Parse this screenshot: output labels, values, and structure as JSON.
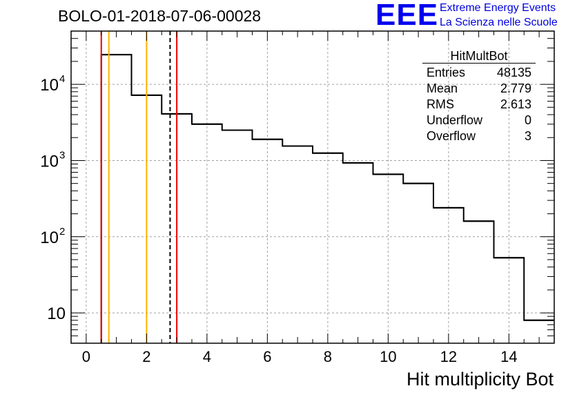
{
  "page": {
    "title": "BOLO-01-2018-07-06-00028",
    "logo_text": "EEE",
    "logo_line1": "Extreme Energy Events",
    "logo_line2": "La Scienza nelle Scuole"
  },
  "stats": {
    "title": "HitMultBot",
    "rows": [
      {
        "label": "Entries",
        "value": "48135"
      },
      {
        "label": "Mean",
        "value": "2.779"
      },
      {
        "label": "RMS",
        "value": "2.613"
      },
      {
        "label": "Underflow",
        "value": "0"
      },
      {
        "label": "Overflow",
        "value": "3"
      }
    ]
  },
  "chart_data": {
    "type": "histogram",
    "title": "BOLO-01-2018-07-06-00028",
    "xlabel": "Hit multiplicity Bot",
    "ylabel": "",
    "xlim": [
      -0.5,
      15.5
    ],
    "ylim": [
      4,
      50000
    ],
    "y_scale": "log",
    "grid": true,
    "x_ticks": [
      0,
      2,
      4,
      6,
      8,
      10,
      12,
      14
    ],
    "y_ticks": [
      {
        "value": 10,
        "base": "10",
        "exp": ""
      },
      {
        "value": 100,
        "base": "10",
        "exp": "2"
      },
      {
        "value": 1000,
        "base": "10",
        "exp": "3"
      },
      {
        "value": 10000,
        "base": "10",
        "exp": "4"
      }
    ],
    "bins": [
      {
        "low": 0.5,
        "high": 1.5,
        "count": 24500
      },
      {
        "low": 1.5,
        "high": 2.5,
        "count": 7200
      },
      {
        "low": 2.5,
        "high": 3.5,
        "count": 4100
      },
      {
        "low": 3.5,
        "high": 4.5,
        "count": 3000
      },
      {
        "low": 4.5,
        "high": 5.5,
        "count": 2500
      },
      {
        "low": 5.5,
        "high": 6.5,
        "count": 1900
      },
      {
        "low": 6.5,
        "high": 7.5,
        "count": 1550
      },
      {
        "low": 7.5,
        "high": 8.5,
        "count": 1250
      },
      {
        "low": 8.5,
        "high": 9.5,
        "count": 930
      },
      {
        "low": 9.5,
        "high": 10.5,
        "count": 660
      },
      {
        "low": 10.5,
        "high": 11.5,
        "count": 500
      },
      {
        "low": 11.5,
        "high": 12.5,
        "count": 240
      },
      {
        "low": 12.5,
        "high": 13.5,
        "count": 160
      },
      {
        "low": 13.5,
        "high": 14.5,
        "count": 53
      },
      {
        "low": 14.5,
        "high": 15.5,
        "count": 8
      }
    ],
    "vertical_lines": [
      {
        "x": 0.5,
        "color": "#ee0000",
        "style": "solid"
      },
      {
        "x": 0.75,
        "color": "#ffb000",
        "style": "solid"
      },
      {
        "x": 2.0,
        "color": "#ffb000",
        "style": "solid"
      },
      {
        "x": 2.779,
        "color": "#000000",
        "style": "dashed"
      },
      {
        "x": 3.0,
        "color": "#ee0000",
        "style": "solid"
      }
    ]
  }
}
